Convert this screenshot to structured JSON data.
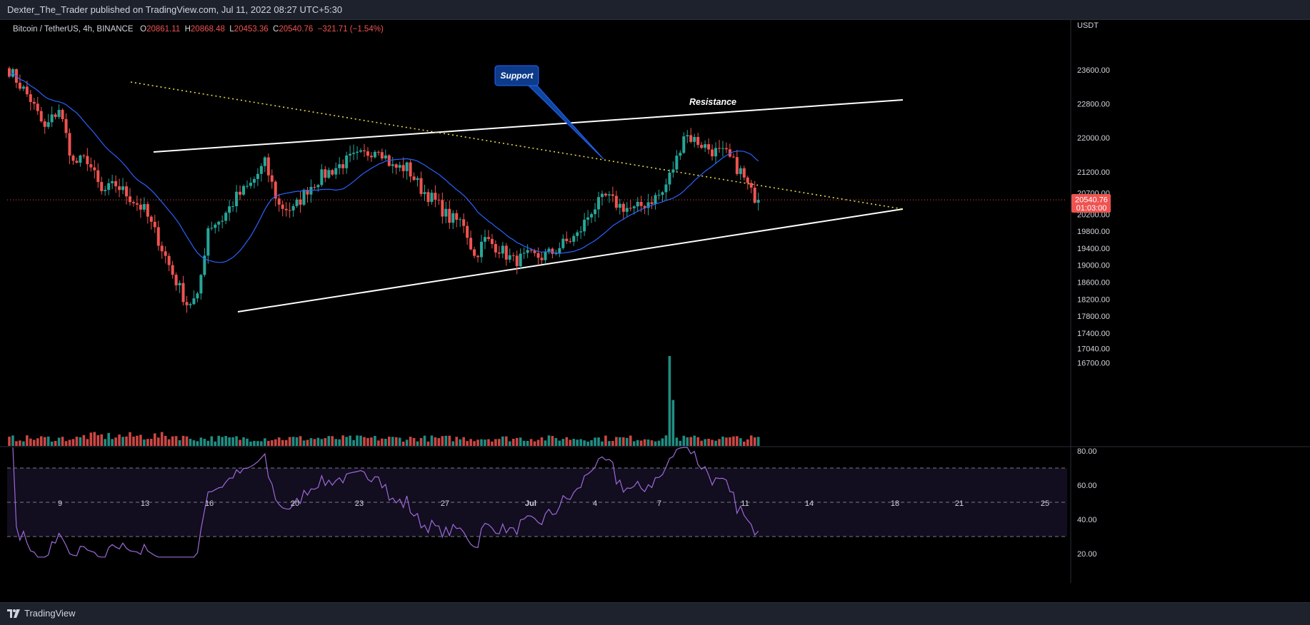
{
  "header": {
    "published": "Dexter_The_Trader published on TradingView.com, Jul 11, 2022 08:27 UTC+5:30"
  },
  "legend": {
    "symbol": "Bitcoin / TetherUS, 4h, BINANCE",
    "o_label": "O",
    "o_value": "20861.11",
    "h_label": "H",
    "h_value": "20868.48",
    "l_label": "L",
    "l_value": "20453.36",
    "c_label": "C",
    "c_value": "20540.76",
    "change": "−321.71 (−1.54%)"
  },
  "footer": {
    "brand": "TradingView"
  },
  "colors": {
    "up": "#26a69a",
    "down": "#ef5350",
    "ma": "#2962ff",
    "rsi": "#9c6ad8",
    "bg": "#000000"
  },
  "chart_data": {
    "type": "candlestick",
    "currency": "USDT",
    "price_axis": {
      "ticks": [
        "23600.00",
        "22800.00",
        "22000.00",
        "21200.00",
        "20700.00",
        "20200.00",
        "19800.00",
        "19400.00",
        "19000.00",
        "18600.00",
        "18200.00",
        "17800.00",
        "17400.00",
        "17040.00",
        "16700.00"
      ],
      "last_price": "20540.76",
      "countdown": "01:03:00"
    },
    "time_axis": {
      "ticks": [
        "9",
        "13",
        "16",
        "20",
        "23",
        "27",
        "Jul",
        "4",
        "7",
        "11",
        "14",
        "18",
        "21",
        "25"
      ]
    },
    "rsi_axis": {
      "ticks": [
        "80.00",
        "60.00",
        "40.00",
        "20.00"
      ],
      "upper": 70,
      "middle": 50,
      "lower": 30
    },
    "annotations": {
      "support": "Support",
      "resistance": "Resistance"
    },
    "anchors": [
      [
        0,
        23600
      ],
      [
        6,
        22900
      ],
      [
        10,
        22200
      ],
      [
        14,
        22700
      ],
      [
        18,
        21400
      ],
      [
        22,
        21500
      ],
      [
        26,
        20700
      ],
      [
        30,
        20900
      ],
      [
        34,
        20600
      ],
      [
        38,
        20300
      ],
      [
        42,
        19600
      ],
      [
        46,
        18800
      ],
      [
        50,
        18100
      ],
      [
        53,
        18200
      ],
      [
        56,
        19900
      ],
      [
        60,
        20100
      ],
      [
        64,
        20600
      ],
      [
        68,
        20900
      ],
      [
        72,
        21400
      ],
      [
        76,
        20400
      ],
      [
        80,
        20300
      ],
      [
        84,
        20800
      ],
      [
        88,
        21100
      ],
      [
        92,
        21300
      ],
      [
        96,
        21500
      ],
      [
        100,
        21600
      ],
      [
        104,
        21800
      ],
      [
        108,
        21300
      ],
      [
        112,
        21300
      ],
      [
        116,
        20800
      ],
      [
        120,
        20500
      ],
      [
        124,
        20100
      ],
      [
        128,
        20000
      ],
      [
        131,
        19200
      ],
      [
        134,
        19600
      ],
      [
        138,
        19400
      ],
      [
        142,
        19100
      ],
      [
        146,
        19200
      ],
      [
        150,
        19200
      ],
      [
        153,
        19300
      ],
      [
        156,
        19500
      ],
      [
        160,
        19700
      ],
      [
        164,
        20300
      ],
      [
        168,
        20600
      ],
      [
        172,
        20400
      ],
      [
        176,
        20300
      ],
      [
        180,
        20500
      ],
      [
        184,
        20700
      ],
      [
        188,
        21500
      ],
      [
        190,
        22100
      ],
      [
        194,
        21900
      ],
      [
        198,
        21700
      ],
      [
        202,
        21600
      ],
      [
        206,
        21200
      ],
      [
        209,
        20700
      ],
      [
        211,
        20540
      ]
    ],
    "ma_period": 20,
    "volume_spikes": {
      "186": 4.5,
      "187": 2.3
    }
  }
}
